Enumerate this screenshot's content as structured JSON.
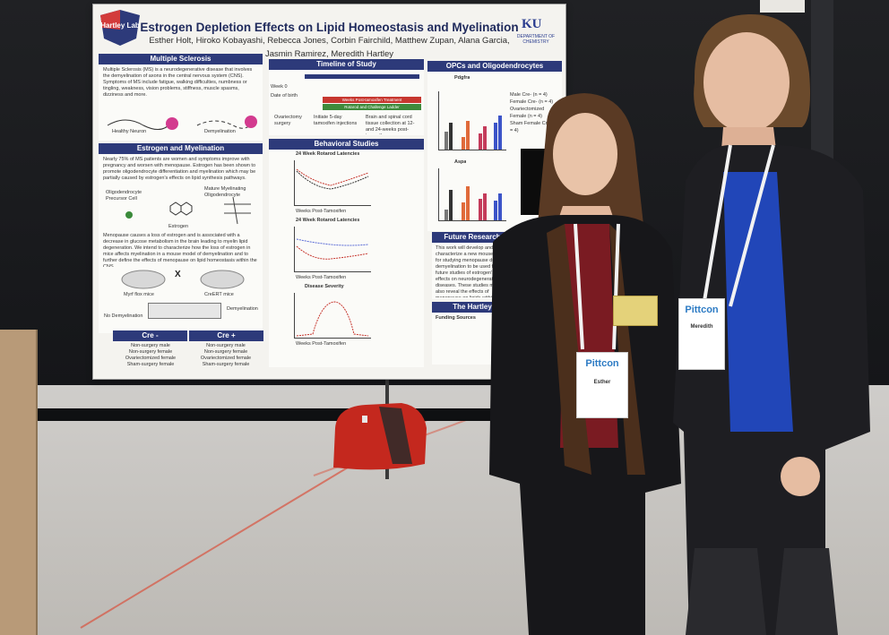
{
  "poster": {
    "title": "Estrogen Depletion Effects on Lipid Homeostasis and Myelination",
    "authors_line1": "Esther Holt, Hiroko Kobayashi, Rebecca Jones, Corbin Fairchild, Matthew Zupan, Alana Garcia,",
    "authors_line2": "Jasmin Ramirez, Meredith Hartley",
    "lab_logo": "Hartley Lab",
    "university_logo": "KU",
    "university_sub": "DEPARTMENT OF CHEMISTRY",
    "sections": {
      "ms": "Multiple Sclerosis",
      "timeline": "Timeline of Study",
      "opcs": "OPCs and Oligodendrocytes",
      "estrogen": "Estrogen and Myelination",
      "behavior": "Behavioral Studies",
      "future": "Future Research",
      "hartley": "The Hartley"
    },
    "ms_text": "Multiple Sclerosis (MS) is a neurodegenerative disease that involves the demyelination of axons in the central nervous system (CNS). Symptoms of MS include fatigue, walking difficulties, numbness or tingling, weakness, vision problems, stiffness, muscle spasms, dizziness and more.",
    "ms_labels": [
      "Healthy Neuron",
      "Demyelination"
    ],
    "timeline_labels": {
      "legend1": "Weeks Post-tamoxifen Treatment",
      "legend2": "Rotarod and Challenge Ladder",
      "col1": "Ovariectomy surgery",
      "col2": "Initiate 5-day tamoxifen injections",
      "col3": "Brain and spinal cord tissue collection at 12- and 24-weeks post-tamoxifen",
      "row1": "Week 0",
      "row2": "Date of birth"
    },
    "opcs_labels": {
      "chart1": "Pdgfra",
      "chart2": "Aspa",
      "legend": [
        "Male Cre- (n = 4)",
        "Female Cre- (n = 4)",
        "Ovariectomized Female (n = 4)",
        "Sham Female Cre+ (n = 4)"
      ]
    },
    "estrogen_text": "Nearly 75% of MS patients are women and symptoms improve with pregnancy and worsen with menopause. Estrogen has been shown to promote oligodendrocyte differentiation and myelination which may be partially caused by estrogen's effects on lipid synthesis pathways.",
    "estrogen_labels": [
      "Oligodendrocyte Precursor Cell",
      "Mature Myelinating Oligodendrocyte",
      "Estrogen"
    ],
    "estrogen_text2": "Menopause causes a loss of estrogen and is associated with a decrease in glucose metabolism in the brain leading to myelin lipid degeneration. We intend to characterize how the loss of estrogen in mice affects myelination in a mouse model of demyelination and to further define the effects of menopause on lipid homeostasis within the CNS.",
    "mouse_labels": [
      "Myrf flox mice",
      "CreERT mice"
    ],
    "cross": "X",
    "flow_labels": [
      "No Demyelination",
      "Demyelination"
    ],
    "cre_minus": "Cre -",
    "cre_plus": "Cre +",
    "cre_minus_list": [
      "Non-surgery male",
      "Non-surgery female",
      "Ovariectomized female",
      "Sham-surgery female"
    ],
    "cre_plus_list": [
      "Non-surgery male",
      "Non-surgery female",
      "Ovariectomized female",
      "Sham-surgery female"
    ],
    "behavior_charts": [
      "24 Week Rotarod Latencies",
      "24 Week Rotarod Latencies",
      "Disease Severity"
    ],
    "behavior_xlabel": "Weeks Post-Tamoxifen",
    "future_text": "This work will develop and characterize a new mouse model for studying menopause during demyelination to be used for future studies of estrogen's effects on neurodegenerative diseases. These studies may also reveal the effects of menopause on lipids within the CNS and highlight potential pathways that estrogen may be utilizing to signal changes in myelination.",
    "funding": "Funding Sources"
  },
  "people": {
    "left_badge": {
      "brand": "Pittcon",
      "name": "Esther"
    },
    "right_badge": {
      "brand": "Pittcon",
      "name": "Meredith"
    }
  },
  "colors": {
    "poster_header": "#2d3a7a",
    "title": "#1f2a5c",
    "badge_brand": "#2d7bc4",
    "shirt_left": "#7a1b22",
    "shirt_right": "#2146b8"
  }
}
